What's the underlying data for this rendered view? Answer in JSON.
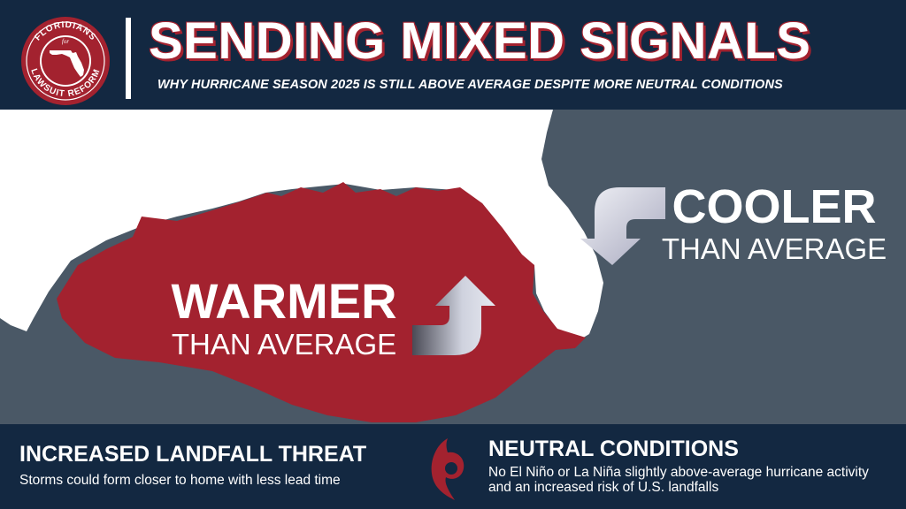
{
  "header": {
    "logo": {
      "top_text": "FLORIDIANS",
      "middle_text": "for",
      "bottom_text": "LAWSUIT REFORM",
      "icon": "florida-state-outline-icon"
    },
    "title": "SENDING MIXED SIGNALS",
    "subtitle": "WHY HURRICANE SEASON 2025 IS STILL ABOVE AVERAGE DESPITE MORE NEUTRAL CONDITIONS"
  },
  "map": {
    "warm": {
      "big": "WARMER",
      "small": "THAN AVERAGE",
      "icon": "up-arrow-icon"
    },
    "cool": {
      "big": "COOLER",
      "small": "THAN AVERAGE",
      "icon": "down-arrow-icon"
    }
  },
  "footer": {
    "left": {
      "title": "INCREASED LANDFALL THREAT",
      "desc": "Storms could form closer to home with less lead time"
    },
    "right": {
      "title": "NEUTRAL CONDITIONS",
      "desc": "No El Niño or La Niña slightly above-average hurricane activity and an increased risk of U.S. landfalls"
    },
    "icon": "hurricane-icon"
  },
  "colors": {
    "navy": "#132841",
    "red": "#a3222f",
    "ocean": "#4a5866",
    "land": "#ffffff"
  }
}
